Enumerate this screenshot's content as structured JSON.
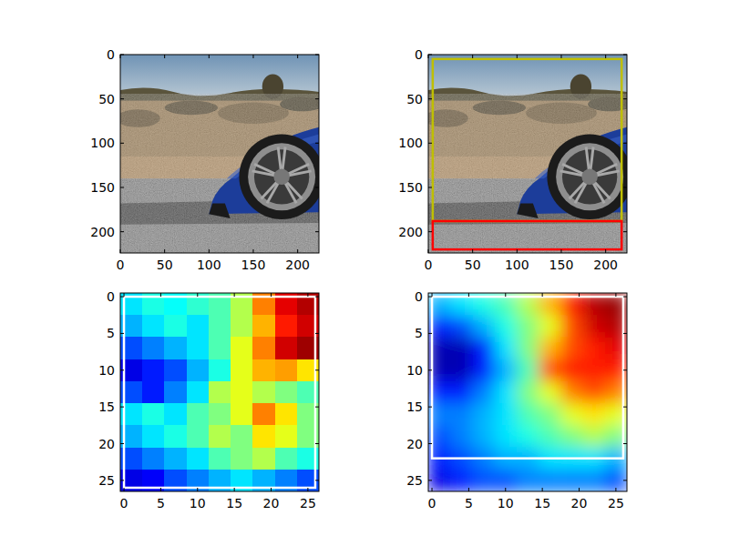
{
  "chart_data": [
    {
      "type": "image",
      "xlim": [
        0,
        224
      ],
      "ylim": [
        224,
        0
      ],
      "xticks": [
        0,
        50,
        100,
        150,
        200
      ],
      "yticks": [
        0,
        50,
        100,
        150,
        200
      ]
    },
    {
      "type": "image",
      "xlim": [
        0,
        224
      ],
      "ylim": [
        224,
        0
      ],
      "xticks": [
        0,
        50,
        100,
        150,
        200
      ],
      "yticks": [
        0,
        50,
        100,
        150,
        200
      ],
      "boxes": [
        {
          "x0": 5,
          "y0": 5,
          "x1": 218,
          "y1": 188,
          "color": "#bfbf00"
        },
        {
          "x0": 5,
          "y0": 188,
          "x1": 218,
          "y1": 220,
          "color": "#ff0000"
        }
      ]
    },
    {
      "type": "heatmap",
      "xlim": [
        -0.5,
        26.5
      ],
      "ylim": [
        26.5,
        -0.5
      ],
      "xticks": [
        0,
        5,
        10,
        15,
        20,
        25
      ],
      "yticks": [
        0,
        5,
        10,
        15,
        20,
        25
      ],
      "clim": [
        0,
        1
      ],
      "cells": [
        [
          0.35,
          0.4,
          0.38,
          0.42,
          0.45,
          0.55,
          0.75,
          0.9,
          0.95
        ],
        [
          0.3,
          0.35,
          0.4,
          0.35,
          0.45,
          0.55,
          0.7,
          0.85,
          0.92
        ],
        [
          0.2,
          0.25,
          0.3,
          0.35,
          0.45,
          0.6,
          0.75,
          0.92,
          0.97
        ],
        [
          0.1,
          0.15,
          0.2,
          0.3,
          0.4,
          0.6,
          0.7,
          0.72,
          0.65
        ],
        [
          0.2,
          0.15,
          0.25,
          0.35,
          0.55,
          0.6,
          0.55,
          0.5,
          0.45
        ],
        [
          0.35,
          0.4,
          0.35,
          0.45,
          0.5,
          0.6,
          0.75,
          0.65,
          0.5
        ],
        [
          0.3,
          0.35,
          0.4,
          0.45,
          0.55,
          0.5,
          0.65,
          0.6,
          0.5
        ],
        [
          0.2,
          0.25,
          0.3,
          0.35,
          0.45,
          0.5,
          0.55,
          0.45,
          0.4
        ],
        [
          0.1,
          0.12,
          0.2,
          0.25,
          0.3,
          0.35,
          0.3,
          0.25,
          0.2
        ]
      ],
      "boxes": [
        {
          "x0": 0,
          "y0": 0,
          "x1": 26,
          "y1": 26,
          "color": "#ffffff"
        }
      ]
    },
    {
      "type": "density",
      "xlim": [
        -0.5,
        26.5
      ],
      "ylim": [
        26.5,
        -0.5
      ],
      "xticks": [
        0,
        5,
        10,
        15,
        20,
        25
      ],
      "yticks": [
        0,
        5,
        10,
        15,
        20,
        25
      ],
      "clim": [
        0,
        1
      ],
      "cells": [
        [
          0.3,
          0.35,
          0.4,
          0.45,
          0.55,
          0.7,
          0.85,
          0.95,
          0.98
        ],
        [
          0.15,
          0.2,
          0.3,
          0.4,
          0.5,
          0.6,
          0.8,
          0.92,
          0.95
        ],
        [
          0.05,
          0.05,
          0.15,
          0.35,
          0.5,
          0.7,
          0.8,
          0.85,
          0.9
        ],
        [
          0.05,
          0.05,
          0.15,
          0.3,
          0.45,
          0.8,
          0.85,
          0.85,
          0.85
        ],
        [
          0.15,
          0.15,
          0.25,
          0.35,
          0.5,
          0.6,
          0.75,
          0.8,
          0.75
        ],
        [
          0.25,
          0.25,
          0.3,
          0.35,
          0.45,
          0.5,
          0.6,
          0.65,
          0.6
        ],
        [
          0.2,
          0.25,
          0.3,
          0.35,
          0.4,
          0.45,
          0.5,
          0.55,
          0.5
        ],
        [
          0.15,
          0.2,
          0.25,
          0.3,
          0.3,
          0.35,
          0.35,
          0.35,
          0.3
        ],
        [
          0.1,
          0.15,
          0.2,
          0.2,
          0.25,
          0.25,
          0.25,
          0.25,
          0.2
        ]
      ],
      "boxes": [
        {
          "x0": 0,
          "y0": 0,
          "x1": 26,
          "y1": 22,
          "color": "#ffffff"
        }
      ]
    }
  ]
}
